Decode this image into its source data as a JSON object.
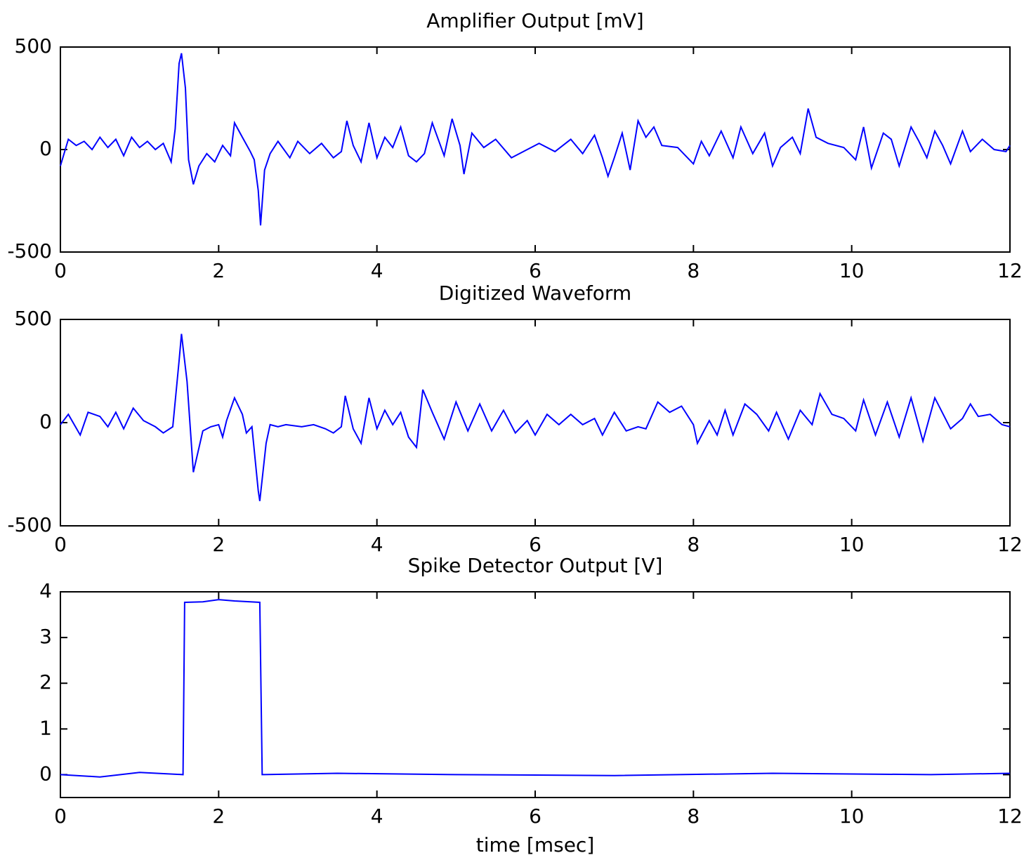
{
  "chart_data": [
    {
      "type": "line",
      "title": "Amplifier Output [mV]",
      "color": "#0000ff",
      "xlim": [
        0,
        12
      ],
      "xticks": [
        0,
        2,
        4,
        6,
        8,
        10,
        12
      ],
      "ylim": [
        -500,
        500
      ],
      "yticks": [
        -500,
        0,
        500
      ],
      "x": [
        0,
        0.1,
        0.2,
        0.3,
        0.4,
        0.5,
        0.6,
        0.7,
        0.8,
        0.9,
        1.0,
        1.1,
        1.2,
        1.3,
        1.4,
        1.45,
        1.5,
        1.53,
        1.58,
        1.62,
        1.68,
        1.75,
        1.85,
        1.95,
        2.05,
        2.15,
        2.2,
        2.3,
        2.4,
        2.45,
        2.5,
        2.53,
        2.58,
        2.65,
        2.75,
        2.9,
        3.0,
        3.15,
        3.3,
        3.45,
        3.55,
        3.62,
        3.7,
        3.8,
        3.9,
        4.0,
        4.1,
        4.2,
        4.3,
        4.4,
        4.5,
        4.6,
        4.7,
        4.85,
        4.95,
        5.05,
        5.1,
        5.2,
        5.35,
        5.5,
        5.7,
        5.9,
        6.05,
        6.25,
        6.45,
        6.6,
        6.75,
        6.85,
        6.92,
        7.0,
        7.1,
        7.2,
        7.3,
        7.4,
        7.5,
        7.6,
        7.8,
        8.0,
        8.1,
        8.2,
        8.35,
        8.5,
        8.6,
        8.75,
        8.9,
        9.0,
        9.1,
        9.25,
        9.35,
        9.45,
        9.55,
        9.7,
        9.9,
        10.05,
        10.15,
        10.25,
        10.4,
        10.5,
        10.6,
        10.75,
        10.85,
        10.95,
        11.05,
        11.15,
        11.25,
        11.4,
        11.5,
        11.65,
        11.8,
        11.95,
        12
      ],
      "values": [
        -80,
        50,
        20,
        40,
        0,
        60,
        10,
        50,
        -30,
        60,
        10,
        40,
        0,
        30,
        -60,
        100,
        420,
        470,
        300,
        -50,
        -170,
        -80,
        -20,
        -60,
        20,
        -30,
        130,
        60,
        -10,
        -50,
        -200,
        -370,
        -100,
        -20,
        40,
        -40,
        40,
        -20,
        30,
        -40,
        -10,
        140,
        20,
        -60,
        130,
        -40,
        60,
        10,
        110,
        -30,
        -60,
        -20,
        130,
        -30,
        150,
        20,
        -120,
        80,
        10,
        50,
        -40,
        0,
        30,
        -10,
        50,
        -20,
        70,
        -40,
        -130,
        -40,
        80,
        -100,
        140,
        60,
        110,
        20,
        10,
        -70,
        40,
        -30,
        90,
        -40,
        110,
        -20,
        80,
        -80,
        10,
        60,
        -20,
        200,
        60,
        30,
        10,
        -50,
        110,
        -90,
        80,
        50,
        -80,
        110,
        40,
        -40,
        90,
        20,
        -70,
        90,
        -10,
        50,
        0,
        -10,
        20
      ]
    },
    {
      "type": "line",
      "title": "Digitized Waveform",
      "color": "#0000ff",
      "xlim": [
        0,
        12
      ],
      "xticks": [
        0,
        2,
        4,
        6,
        8,
        10,
        12
      ],
      "ylim": [
        -500,
        500
      ],
      "yticks": [
        -500,
        0,
        500
      ],
      "x": [
        0,
        0.1,
        0.25,
        0.35,
        0.5,
        0.6,
        0.7,
        0.8,
        0.92,
        1.05,
        1.2,
        1.3,
        1.42,
        1.5,
        1.53,
        1.6,
        1.68,
        1.8,
        1.9,
        2.0,
        2.05,
        2.1,
        2.2,
        2.3,
        2.35,
        2.42,
        2.5,
        2.52,
        2.6,
        2.65,
        2.75,
        2.85,
        3.05,
        3.2,
        3.35,
        3.45,
        3.55,
        3.6,
        3.7,
        3.8,
        3.9,
        4.0,
        4.1,
        4.2,
        4.3,
        4.4,
        4.5,
        4.58,
        4.7,
        4.85,
        5.0,
        5.15,
        5.3,
        5.45,
        5.6,
        5.75,
        5.9,
        6.0,
        6.15,
        6.3,
        6.45,
        6.6,
        6.75,
        6.85,
        7.0,
        7.15,
        7.3,
        7.4,
        7.55,
        7.7,
        7.85,
        8.0,
        8.05,
        8.2,
        8.3,
        8.4,
        8.5,
        8.65,
        8.8,
        8.95,
        9.05,
        9.2,
        9.35,
        9.5,
        9.6,
        9.75,
        9.9,
        10.05,
        10.15,
        10.3,
        10.45,
        10.6,
        10.75,
        10.9,
        11.05,
        11.25,
        11.4,
        11.5,
        11.6,
        11.75,
        11.9,
        12
      ],
      "values": [
        -10,
        40,
        -60,
        50,
        30,
        -20,
        50,
        -30,
        70,
        10,
        -20,
        -50,
        -20,
        300,
        430,
        200,
        -240,
        -40,
        -20,
        -10,
        -70,
        10,
        120,
        40,
        -50,
        -20,
        -330,
        -380,
        -100,
        -10,
        -20,
        -10,
        -20,
        -10,
        -30,
        -50,
        -20,
        130,
        -30,
        -100,
        120,
        -30,
        60,
        -10,
        50,
        -70,
        -120,
        160,
        50,
        -80,
        100,
        -40,
        90,
        -40,
        60,
        -50,
        10,
        -60,
        40,
        -10,
        40,
        -10,
        20,
        -60,
        50,
        -40,
        -20,
        -30,
        100,
        50,
        80,
        -10,
        -100,
        10,
        -60,
        60,
        -60,
        90,
        40,
        -40,
        50,
        -80,
        60,
        -10,
        140,
        40,
        20,
        -40,
        110,
        -60,
        100,
        -70,
        120,
        -90,
        120,
        -30,
        20,
        90,
        30,
        40,
        -10,
        -20
      ]
    },
    {
      "type": "line",
      "title": "Spike Detector Output [V]",
      "xlabel": "time [msec]",
      "color": "#0000ff",
      "xlim": [
        0,
        12
      ],
      "xticks": [
        0,
        2,
        4,
        6,
        8,
        10,
        12
      ],
      "ylim": [
        -0.5,
        4
      ],
      "yticks": [
        0,
        1,
        2,
        3,
        4
      ],
      "x": [
        0,
        0.5,
        1.0,
        1.55,
        1.57,
        1.8,
        2.0,
        2.2,
        2.52,
        2.55,
        3.5,
        5,
        7,
        9,
        11,
        12
      ],
      "values": [
        0,
        -0.05,
        0.05,
        0,
        3.77,
        3.78,
        3.83,
        3.8,
        3.77,
        0,
        0.03,
        0,
        -0.02,
        0.03,
        0,
        0.03
      ]
    }
  ]
}
